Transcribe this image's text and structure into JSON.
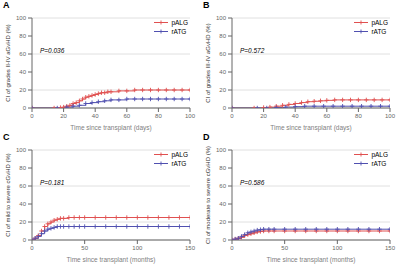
{
  "chart_data": [
    {
      "type": "line",
      "title": "A",
      "xlabel": "Time since transplant (days)",
      "ylabel": "CI of grades II-IV aGvHD (%)",
      "annotations": [
        "P=0.036"
      ],
      "xlim": [
        0,
        100
      ],
      "ylim": [
        0,
        100
      ],
      "xticks": [
        0,
        20,
        40,
        60,
        80,
        100
      ],
      "yticks": [
        0,
        20,
        40,
        60,
        80,
        100
      ],
      "grid": "y",
      "legend": "upper right",
      "series": [
        {
          "name": "pALG",
          "color": "#e05050",
          "marker": "+",
          "line_style": "step",
          "x": [
            0,
            14,
            18,
            20,
            22,
            24,
            26,
            28,
            30,
            32,
            34,
            36,
            38,
            40,
            42,
            44,
            46,
            48,
            50,
            55,
            60,
            65,
            70,
            75,
            80,
            85,
            90,
            95,
            100
          ],
          "values": [
            0,
            0,
            0.5,
            1,
            2,
            3,
            5,
            6,
            8,
            10,
            12,
            13,
            14,
            15,
            16,
            17,
            17,
            18,
            18,
            19,
            19,
            20,
            20,
            20,
            20,
            20,
            20,
            20,
            20
          ]
        },
        {
          "name": "rATG",
          "color": "#5050b0",
          "marker": "+",
          "line_style": "step",
          "x": [
            0,
            16,
            22,
            26,
            30,
            34,
            38,
            42,
            46,
            50,
            55,
            60,
            65,
            70,
            75,
            80,
            85,
            90,
            95,
            100
          ],
          "values": [
            0,
            0,
            1,
            2,
            3,
            5,
            6,
            7,
            8,
            9,
            9,
            10,
            10,
            10,
            10,
            10,
            10,
            10,
            10,
            10
          ]
        }
      ]
    },
    {
      "type": "line",
      "title": "B",
      "xlabel": "Time since transplant (days)",
      "ylabel": "CI of grades III-IV aGvHD (%)",
      "annotations": [
        "P=0.572"
      ],
      "xlim": [
        0,
        100
      ],
      "ylim": [
        0,
        100
      ],
      "xticks": [
        0,
        20,
        40,
        60,
        80,
        100
      ],
      "yticks": [
        0,
        20,
        40,
        60,
        80,
        100
      ],
      "grid": "y",
      "legend": "upper right",
      "series": [
        {
          "name": "pALG",
          "color": "#e05050",
          "marker": "+",
          "line_style": "step",
          "x": [
            0,
            14,
            20,
            24,
            28,
            32,
            36,
            40,
            44,
            48,
            52,
            56,
            60,
            65,
            70,
            75,
            80,
            85,
            90,
            95,
            100
          ],
          "values": [
            0,
            0,
            0.5,
            1,
            2,
            3,
            4,
            5,
            6,
            7,
            7.5,
            8,
            8.5,
            9,
            9,
            9,
            9,
            9,
            9,
            9,
            9
          ]
        },
        {
          "name": "rATG",
          "color": "#5050b0",
          "marker": "+",
          "line_style": "step",
          "x": [
            0,
            16,
            22,
            28,
            34,
            40,
            46,
            52,
            58,
            64,
            70,
            76,
            82,
            88,
            94,
            100
          ],
          "values": [
            0,
            0,
            0,
            0.5,
            1,
            1.5,
            2,
            2,
            2,
            2,
            2,
            2,
            2,
            2,
            2,
            2
          ]
        }
      ]
    },
    {
      "type": "line",
      "title": "C",
      "xlabel": "Time since transplant (months)",
      "ylabel": "CI of mild to severe cGvHD (%)",
      "annotations": [
        "P=0.181"
      ],
      "xlim": [
        0,
        150
      ],
      "ylim": [
        0,
        100
      ],
      "xticks": [
        0,
        50,
        100,
        150
      ],
      "yticks": [
        0,
        20,
        40,
        60,
        80,
        100
      ],
      "grid": "y",
      "legend": "upper right",
      "series": [
        {
          "name": "pALG",
          "color": "#e05050",
          "marker": "+",
          "line_style": "step",
          "x": [
            0,
            3,
            6,
            9,
            12,
            15,
            18,
            21,
            24,
            27,
            30,
            35,
            40,
            45,
            50,
            60,
            70,
            80,
            90,
            100,
            110,
            120,
            130,
            140,
            150
          ],
          "values": [
            0,
            2,
            5,
            10,
            15,
            18,
            20,
            22,
            23,
            24,
            24,
            25,
            25,
            25,
            25,
            25,
            25,
            25,
            25,
            25,
            25,
            25,
            25,
            25,
            25
          ]
        },
        {
          "name": "rATG",
          "color": "#5050b0",
          "marker": "+",
          "line_style": "step",
          "x": [
            0,
            3,
            6,
            9,
            12,
            15,
            18,
            21,
            24,
            27,
            30,
            35,
            40,
            45,
            50,
            60,
            70,
            80,
            90,
            100,
            110,
            120,
            130,
            140,
            150
          ],
          "values": [
            0,
            2,
            4,
            7,
            10,
            12,
            13,
            14,
            15,
            15,
            15,
            15,
            15,
            15,
            15,
            15,
            15,
            15,
            15,
            15,
            15,
            15,
            15,
            15,
            15
          ]
        }
      ]
    },
    {
      "type": "line",
      "title": "D",
      "xlabel": "Time since transplant (months)",
      "ylabel": "CI of moderate to severe cGvHD (%)",
      "annotations": [
        "P=0.586"
      ],
      "xlim": [
        0,
        150
      ],
      "ylim": [
        0,
        100
      ],
      "xticks": [
        0,
        50,
        100,
        150
      ],
      "yticks": [
        0,
        20,
        40,
        60,
        80,
        100
      ],
      "grid": "y",
      "legend": "upper right",
      "series": [
        {
          "name": "pALG",
          "color": "#e05050",
          "marker": "+",
          "line_style": "step",
          "x": [
            0,
            3,
            6,
            9,
            12,
            15,
            18,
            21,
            24,
            27,
            30,
            35,
            40,
            50,
            60,
            70,
            80,
            90,
            100,
            110,
            120,
            130,
            140,
            150
          ],
          "values": [
            0,
            1,
            2,
            3,
            5,
            6,
            7,
            8,
            9,
            9.5,
            10,
            10,
            10,
            10,
            10,
            10,
            10,
            10,
            10,
            10,
            10,
            10,
            10,
            10
          ]
        },
        {
          "name": "rATG",
          "color": "#5050b0",
          "marker": "+",
          "line_style": "step",
          "x": [
            0,
            3,
            6,
            9,
            12,
            15,
            18,
            21,
            24,
            27,
            30,
            35,
            40,
            50,
            60,
            70,
            80,
            90,
            100,
            110,
            120,
            130,
            140,
            150
          ],
          "values": [
            0,
            1,
            2,
            4,
            6,
            8,
            9,
            10,
            11,
            11.5,
            12,
            12,
            12,
            12,
            12,
            12,
            12,
            12,
            12,
            12,
            12,
            12,
            12,
            12
          ]
        }
      ]
    }
  ]
}
